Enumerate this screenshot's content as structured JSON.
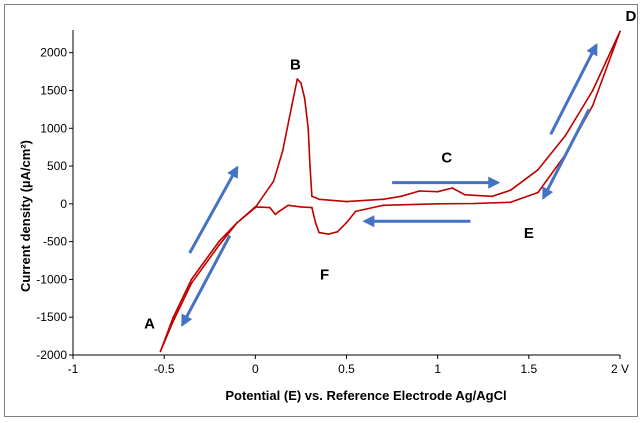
{
  "chart_data": {
    "type": "line",
    "title": "",
    "xlabel": "Potential (E) vs. Reference Electrode Ag/AgCl",
    "ylabel": "Current density (µA/cm²)",
    "xlim": [
      -1,
      2
    ],
    "ylim": [
      -2000,
      2300
    ],
    "grid": false,
    "x_ticks": [
      "-1",
      "-0.5",
      "0",
      "0.5",
      "1",
      "1.5",
      "2 V"
    ],
    "y_ticks": [
      "-2000",
      "-1500",
      "-1000",
      "-500",
      "0",
      "500",
      "1000",
      "1500",
      "2000"
    ],
    "x_tick_values": [
      -1,
      -0.5,
      0,
      0.5,
      1,
      1.5,
      2
    ],
    "y_tick_values": [
      -2000,
      -1500,
      -1000,
      -500,
      0,
      500,
      1000,
      1500,
      2000
    ],
    "line_color": "#c00000",
    "arrow_color": "#4472c4",
    "series": [
      {
        "points": [
          [
            -0.52,
            -1950
          ],
          [
            -0.45,
            -1500
          ],
          [
            -0.35,
            -1000
          ],
          [
            -0.2,
            -500
          ],
          [
            -0.1,
            -250
          ],
          [
            0.0,
            -50
          ],
          [
            0.1,
            300
          ],
          [
            0.15,
            700
          ],
          [
            0.2,
            1300
          ],
          [
            0.23,
            1650
          ],
          [
            0.25,
            1600
          ],
          [
            0.27,
            1400
          ],
          [
            0.29,
            1000
          ],
          [
            0.3,
            500
          ],
          [
            0.31,
            100
          ],
          [
            0.35,
            60
          ],
          [
            0.5,
            30
          ],
          [
            0.7,
            60
          ],
          [
            0.8,
            100
          ],
          [
            0.9,
            170
          ],
          [
            1.0,
            160
          ],
          [
            1.08,
            210
          ],
          [
            1.15,
            120
          ],
          [
            1.3,
            100
          ],
          [
            1.4,
            180
          ],
          [
            1.55,
            450
          ],
          [
            1.7,
            900
          ],
          [
            1.85,
            1500
          ],
          [
            2.0,
            2280
          ],
          [
            1.85,
            1300
          ],
          [
            1.7,
            650
          ],
          [
            1.55,
            150
          ],
          [
            1.4,
            20
          ],
          [
            1.2,
            5
          ],
          [
            1.0,
            0
          ],
          [
            0.7,
            -20
          ],
          [
            0.55,
            -100
          ],
          [
            0.5,
            -250
          ],
          [
            0.45,
            -370
          ],
          [
            0.4,
            -400
          ],
          [
            0.35,
            -380
          ],
          [
            0.33,
            -250
          ],
          [
            0.31,
            -50
          ],
          [
            0.25,
            -40
          ],
          [
            0.18,
            -20
          ],
          [
            0.13,
            -100
          ],
          [
            0.11,
            -140
          ],
          [
            0.08,
            -50
          ],
          [
            0.0,
            -40
          ],
          [
            -0.1,
            -250
          ],
          [
            -0.2,
            -550
          ],
          [
            -0.35,
            -1050
          ],
          [
            -0.45,
            -1550
          ],
          [
            -0.52,
            -1950
          ]
        ]
      }
    ],
    "annotations": [
      {
        "text": "A",
        "x": -0.58,
        "y": -1650
      },
      {
        "text": "B",
        "x": 0.22,
        "y": 1780
      },
      {
        "text": "C",
        "x": 1.05,
        "y": 550
      },
      {
        "text": "D",
        "x": 2.06,
        "y": 2420
      },
      {
        "text": "E",
        "x": 1.5,
        "y": -450
      },
      {
        "text": "F",
        "x": 0.38,
        "y": -1000
      }
    ],
    "arrows": [
      {
        "x1": -0.36,
        "y1": -650,
        "x2": -0.1,
        "y2": 480
      },
      {
        "x1": -0.14,
        "y1": -420,
        "x2": -0.4,
        "y2": -1600
      },
      {
        "x1": 0.75,
        "y1": 280,
        "x2": 1.33,
        "y2": 280
      },
      {
        "x1": 1.18,
        "y1": -230,
        "x2": 0.6,
        "y2": -230
      },
      {
        "x1": 1.62,
        "y1": 920,
        "x2": 1.87,
        "y2": 2100
      },
      {
        "x1": 1.83,
        "y1": 1250,
        "x2": 1.58,
        "y2": 80
      }
    ]
  }
}
